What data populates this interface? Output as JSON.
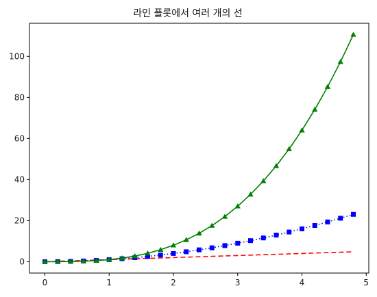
{
  "chart_data": {
    "type": "line",
    "title": "라인 플롯에서 여러 개의 선",
    "xlabel": "",
    "ylabel": "",
    "xlim": [
      -0.24,
      5.04
    ],
    "ylim": [
      -5.53,
      116.1
    ],
    "x_ticks": [
      0,
      1,
      2,
      3,
      4,
      5
    ],
    "y_ticks": [
      0,
      20,
      40,
      60,
      80,
      100
    ],
    "grid": false,
    "x": [
      0,
      0.2,
      0.4,
      0.6,
      0.8,
      1.0,
      1.2,
      1.4,
      1.6,
      1.8,
      2.0,
      2.2,
      2.4,
      2.6,
      2.8,
      3.0,
      3.2,
      3.4,
      3.6,
      3.8,
      4.0,
      4.2,
      4.4,
      4.6,
      4.8
    ],
    "series": [
      {
        "color": "#ff0000",
        "linestyle": "dashed",
        "marker": "none",
        "values": [
          0,
          0.2,
          0.4,
          0.6,
          0.8,
          1.0,
          1.2,
          1.4,
          1.6,
          1.8,
          2.0,
          2.2,
          2.4,
          2.6,
          2.8,
          3.0,
          3.2,
          3.4,
          3.6,
          3.8,
          4.0,
          4.2,
          4.4,
          4.6,
          4.8
        ]
      },
      {
        "color": "#0000ff",
        "linestyle": "dotted",
        "marker": "square",
        "values": [
          0,
          0.04,
          0.16,
          0.36,
          0.64,
          1.0,
          1.44,
          1.96,
          2.56,
          3.24,
          4.0,
          4.84,
          5.76,
          6.76,
          7.84,
          9.0,
          10.24,
          11.56,
          12.96,
          14.44,
          16.0,
          17.64,
          19.36,
          21.16,
          23.04
        ]
      },
      {
        "color": "#008000",
        "linestyle": "solid",
        "marker": "triangle",
        "values": [
          0,
          0.008,
          0.064,
          0.216,
          0.512,
          1.0,
          1.728,
          2.744,
          4.096,
          5.832,
          8.0,
          10.648,
          13.824,
          17.576,
          21.952,
          27.0,
          32.768,
          39.304,
          46.656,
          54.872,
          64.0,
          74.088,
          85.184,
          97.336,
          110.592
        ]
      }
    ]
  }
}
